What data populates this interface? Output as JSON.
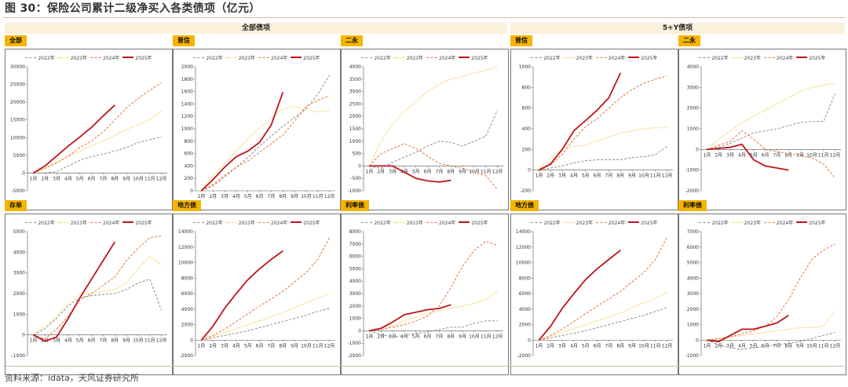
{
  "figure_title": "图 30：保险公司累计二级净买入各类债项（亿元）",
  "source_note": "资料来源：idata，天风证券研究所",
  "group_headers": [
    "全部债项",
    "5+Y债项"
  ],
  "legend_labels": [
    "2022年",
    "2023年",
    "2024年",
    "2025年"
  ],
  "series_colors": {
    "2022": "#8c8c8c",
    "2023": "#f5c542",
    "2024": "#e8743b",
    "2025": "#c0141b"
  },
  "month_labels": [
    "1月",
    "2月",
    "3月",
    "4月",
    "5月",
    "6月",
    "7月",
    "8月",
    "9月",
    "10月",
    "11月",
    "12月"
  ],
  "chart_data": [
    {
      "type": "line",
      "title": "全部",
      "ylim": [
        -5000,
        30000
      ],
      "yticks": [
        -5000,
        0,
        5000,
        10000,
        15000,
        20000,
        25000,
        30000
      ],
      "x": "month",
      "series": [
        {
          "name": "2022年",
          "style": "dashed",
          "values": [
            0,
            0,
            400,
            2000,
            3600,
            4600,
            5400,
            6200,
            7200,
            8600,
            9400,
            10200
          ]
        },
        {
          "name": "2023年",
          "style": "dotted",
          "values": [
            0,
            1500,
            3000,
            4600,
            6200,
            7700,
            9000,
            10600,
            12300,
            13700,
            15000,
            17500
          ]
        },
        {
          "name": "2024年",
          "style": "dashed",
          "values": [
            0,
            1300,
            2800,
            4800,
            7200,
            9000,
            11600,
            15000,
            18400,
            21000,
            23400,
            25500
          ]
        },
        {
          "name": "2025年",
          "style": "solid",
          "values": [
            0,
            2000,
            4800,
            7600,
            10200,
            12900,
            16100,
            19200
          ]
        }
      ]
    },
    {
      "type": "line",
      "title": "普信",
      "ylim": [
        0,
        2000
      ],
      "yticks": [
        0,
        200,
        400,
        600,
        800,
        1000,
        1200,
        1400,
        1600,
        1800,
        2000
      ],
      "x": "month",
      "series": [
        {
          "name": "2022年",
          "style": "dashed",
          "values": [
            0,
            80,
            220,
            380,
            540,
            720,
            880,
            1040,
            1180,
            1320,
            1560,
            1860
          ]
        },
        {
          "name": "2023年",
          "style": "dotted",
          "values": [
            0,
            250,
            440,
            640,
            840,
            1010,
            1160,
            1320,
            1360,
            1310,
            1270,
            1300
          ]
        },
        {
          "name": "2024年",
          "style": "dashed",
          "values": [
            0,
            100,
            250,
            380,
            480,
            620,
            760,
            900,
            1120,
            1360,
            1460,
            1530
          ]
        },
        {
          "name": "2025年",
          "style": "solid",
          "values": [
            0,
            180,
            380,
            550,
            640,
            780,
            1060,
            1590
          ]
        }
      ]
    },
    {
      "type": "line",
      "title": "二永",
      "ylim": [
        -1000,
        4000
      ],
      "yticks": [
        -1000,
        -500,
        0,
        500,
        1000,
        1500,
        2000,
        2500,
        3000,
        3500,
        4000
      ],
      "x": "month",
      "series": [
        {
          "name": "2022年",
          "style": "dashed",
          "values": [
            0,
            -100,
            150,
            350,
            550,
            800,
            1000,
            950,
            800,
            1000,
            1200,
            2250
          ]
        },
        {
          "name": "2023年",
          "style": "dotted",
          "values": [
            0,
            1000,
            1700,
            2200,
            2600,
            3000,
            3300,
            3500,
            3600,
            3750,
            3850,
            4000
          ]
        },
        {
          "name": "2024年",
          "style": "dashed",
          "values": [
            0,
            500,
            700,
            900,
            700,
            400,
            100,
            0,
            -100,
            -250,
            -400,
            -950
          ]
        },
        {
          "name": "2025年",
          "style": "solid",
          "values": [
            0,
            0,
            0,
            -250,
            -500,
            -600,
            -650,
            -580
          ]
        }
      ]
    },
    {
      "type": "line",
      "title": "普信",
      "ylim": [
        -200,
        1000
      ],
      "yticks": [
        -200,
        0,
        200,
        400,
        600,
        800,
        1000
      ],
      "x": "month",
      "series": [
        {
          "name": "2022年",
          "style": "dashed",
          "values": [
            0,
            20,
            40,
            70,
            90,
            100,
            100,
            100,
            120,
            130,
            150,
            230
          ]
        },
        {
          "name": "2023年",
          "style": "dotted",
          "values": [
            0,
            130,
            200,
            230,
            240,
            280,
            320,
            360,
            380,
            400,
            410,
            410
          ]
        },
        {
          "name": "2024年",
          "style": "dashed",
          "values": [
            0,
            50,
            150,
            300,
            420,
            500,
            600,
            700,
            780,
            840,
            880,
            910
          ]
        },
        {
          "name": "2025年",
          "style": "solid",
          "values": [
            0,
            60,
            200,
            380,
            480,
            580,
            700,
            940
          ]
        }
      ]
    },
    {
      "type": "line",
      "title": "二永",
      "ylim": [
        -2000,
        4000
      ],
      "yticks": [
        -2000,
        -1000,
        0,
        1000,
        2000,
        3000,
        4000
      ],
      "x": "month",
      "series": [
        {
          "name": "2022年",
          "style": "dashed",
          "values": [
            0,
            100,
            300,
            550,
            800,
            900,
            1000,
            1150,
            1300,
            1350,
            1350,
            2700
          ]
        },
        {
          "name": "2023年",
          "style": "dotted",
          "values": [
            0,
            500,
            900,
            1300,
            1600,
            1900,
            2200,
            2500,
            2800,
            3000,
            3100,
            3200
          ]
        },
        {
          "name": "2024年",
          "style": "dashed",
          "values": [
            0,
            200,
            400,
            900,
            500,
            0,
            -100,
            -200,
            -300,
            -400,
            -700,
            -1400
          ]
        },
        {
          "name": "2025年",
          "style": "solid",
          "values": [
            0,
            50,
            100,
            250,
            -500,
            -800,
            -900,
            -1000
          ]
        }
      ]
    },
    {
      "type": "line",
      "title": "存单",
      "ylim": [
        -1000,
        5000
      ],
      "yticks": [
        -1000,
        0,
        1000,
        2000,
        3000,
        4000,
        5000
      ],
      "x": "month",
      "series": [
        {
          "name": "2022年",
          "style": "dashed",
          "values": [
            0,
            300,
            800,
            1400,
            1800,
            1900,
            1950,
            2000,
            2200,
            2500,
            2700,
            1200
          ]
        },
        {
          "name": "2023年",
          "style": "dotted",
          "values": [
            0,
            400,
            900,
            1500,
            2000,
            2000,
            2100,
            2200,
            2500,
            3200,
            3800,
            3400
          ]
        },
        {
          "name": "2024年",
          "style": "dashed",
          "values": [
            0,
            -200,
            300,
            900,
            1700,
            2000,
            2400,
            2800,
            3600,
            4200,
            4700,
            4800
          ]
        },
        {
          "name": "2025年",
          "style": "solid",
          "values": [
            0,
            -300,
            -100,
            800,
            1800,
            2700,
            3600,
            4500
          ]
        }
      ]
    },
    {
      "type": "line",
      "title": "地方债",
      "ylim": [
        -2000,
        14000
      ],
      "yticks": [
        -2000,
        0,
        2000,
        4000,
        6000,
        8000,
        10000,
        12000,
        14000
      ],
      "x": "month",
      "series": [
        {
          "name": "2022年",
          "style": "dashed",
          "values": [
            0,
            300,
            600,
            900,
            1200,
            1600,
            2000,
            2400,
            2800,
            3200,
            3700,
            4100
          ]
        },
        {
          "name": "2023年",
          "style": "dotted",
          "values": [
            0,
            500,
            1000,
            1500,
            2000,
            2500,
            3000,
            3500,
            4200,
            4800,
            5400,
            6000
          ]
        },
        {
          "name": "2024年",
          "style": "dashed",
          "values": [
            0,
            600,
            1400,
            2400,
            3400,
            4400,
            5300,
            6300,
            7500,
            8700,
            10400,
            13200
          ]
        },
        {
          "name": "2025年",
          "style": "solid",
          "values": [
            0,
            1800,
            4100,
            6000,
            7800,
            9200,
            10400,
            11500
          ]
        }
      ]
    },
    {
      "type": "line",
      "title": "利率债",
      "ylim": [
        -2000,
        8000
      ],
      "yticks": [
        -2000,
        -1000,
        0,
        1000,
        2000,
        3000,
        4000,
        5000,
        6000,
        7000,
        8000
      ],
      "x": "month",
      "series": [
        {
          "name": "2022年",
          "style": "dashed",
          "values": [
            0,
            -300,
            -500,
            -400,
            -200,
            -100,
            100,
            300,
            300,
            600,
            800,
            800
          ]
        },
        {
          "name": "2023年",
          "style": "dotted",
          "values": [
            0,
            200,
            400,
            800,
            1100,
            1400,
            1600,
            1800,
            2000,
            2200,
            2500,
            3200
          ]
        },
        {
          "name": "2024年",
          "style": "dashed",
          "values": [
            0,
            100,
            300,
            500,
            800,
            1200,
            2000,
            3500,
            5200,
            6500,
            7200,
            6900
          ]
        },
        {
          "name": "2025年",
          "style": "solid",
          "values": [
            0,
            200,
            700,
            1300,
            1500,
            1700,
            1800,
            2100
          ]
        }
      ]
    },
    {
      "type": "line",
      "title": "地方债",
      "ylim": [
        -2000,
        14000
      ],
      "yticks": [
        -2000,
        0,
        2000,
        4000,
        6000,
        8000,
        10000,
        12000,
        14000
      ],
      "x": "month",
      "series": [
        {
          "name": "2022年",
          "style": "dashed",
          "values": [
            0,
            300,
            600,
            900,
            1200,
            1600,
            2000,
            2400,
            2800,
            3200,
            3700,
            4200
          ]
        },
        {
          "name": "2023年",
          "style": "dotted",
          "values": [
            0,
            500,
            1000,
            1500,
            2000,
            2500,
            3000,
            3500,
            4200,
            4800,
            5400,
            6200
          ]
        },
        {
          "name": "2024年",
          "style": "dashed",
          "values": [
            0,
            600,
            1400,
            2400,
            3400,
            4400,
            5300,
            6300,
            7500,
            8700,
            10400,
            13300
          ]
        },
        {
          "name": "2025年",
          "style": "solid",
          "values": [
            0,
            1800,
            4100,
            6000,
            7800,
            9200,
            10400,
            11600
          ]
        }
      ]
    },
    {
      "type": "line",
      "title": "利率债",
      "ylim": [
        -1000,
        7000
      ],
      "yticks": [
        -1000,
        0,
        1000,
        2000,
        3000,
        4000,
        5000,
        6000,
        7000
      ],
      "x": "month",
      "series": [
        {
          "name": "2022年",
          "style": "dashed",
          "values": [
            0,
            -300,
            -500,
            -600,
            -500,
            -400,
            -300,
            -200,
            -100,
            100,
            300,
            500
          ]
        },
        {
          "name": "2023年",
          "style": "dotted",
          "values": [
            0,
            100,
            200,
            300,
            400,
            500,
            600,
            700,
            800,
            800,
            900,
            1900
          ]
        },
        {
          "name": "2024年",
          "style": "dashed",
          "values": [
            0,
            100,
            200,
            400,
            600,
            900,
            1500,
            2600,
            4000,
            5200,
            5800,
            6200
          ]
        },
        {
          "name": "2025年",
          "style": "solid",
          "values": [
            0,
            -100,
            300,
            700,
            700,
            900,
            1100,
            1600
          ]
        }
      ]
    }
  ]
}
